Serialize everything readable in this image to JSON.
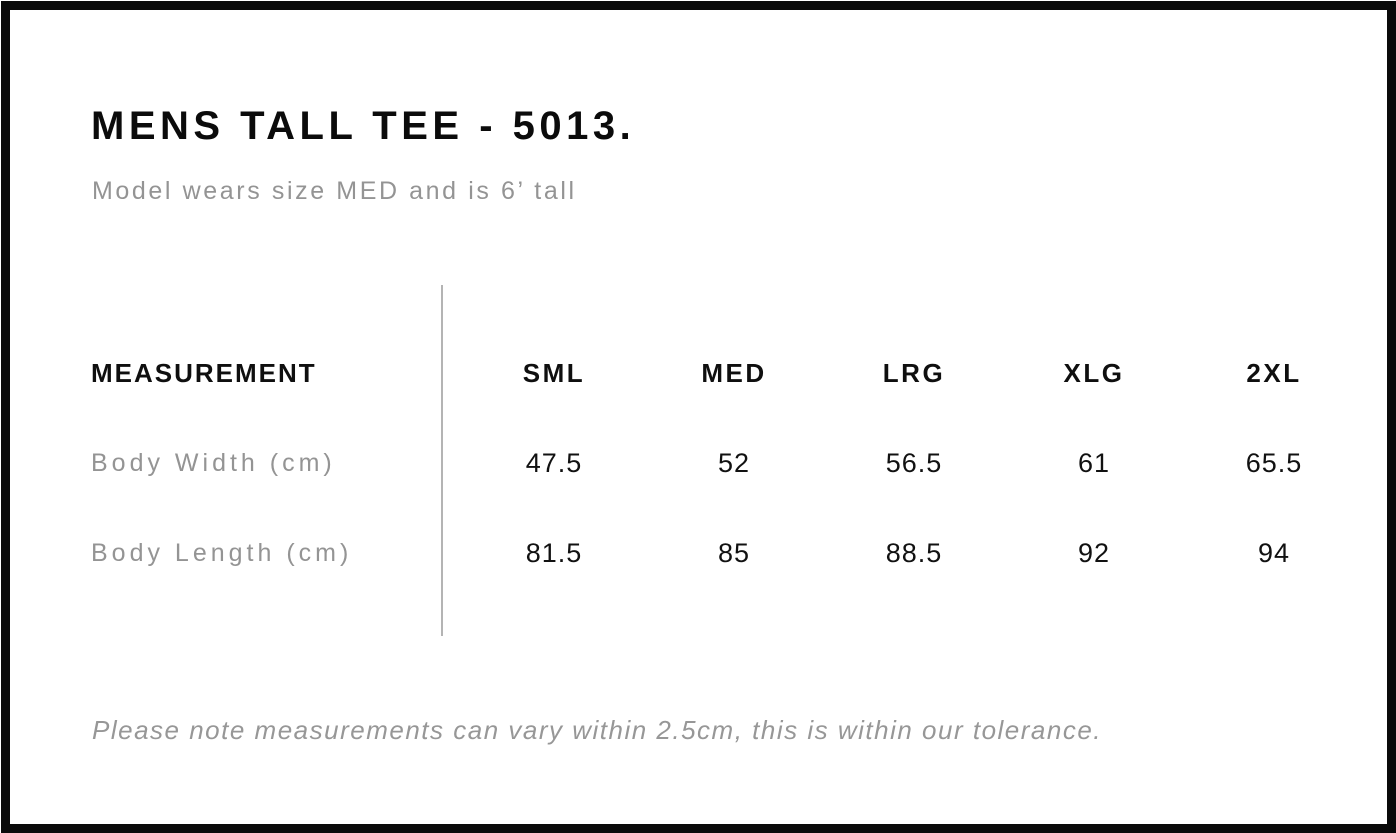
{
  "page": {
    "title": "MENS TALL TEE - 5013.",
    "subtitle": "Model wears size MED and is 6’ tall",
    "footnote": "Please note measurements can vary within 2.5cm, this is within our tolerance."
  },
  "size_chart": {
    "measurement_header": "MEASUREMENT",
    "size_headers": [
      "SML",
      "MED",
      "LRG",
      "XLG",
      "2XL"
    ],
    "rows": [
      {
        "label": "Body Width (cm)",
        "values": [
          "47.5",
          "52",
          "56.5",
          "61",
          "65.5"
        ]
      },
      {
        "label": "Body Length (cm)",
        "values": [
          "81.5",
          "85",
          "88.5",
          "92",
          "94"
        ]
      }
    ]
  },
  "colors": {
    "border": "#0a0a0a",
    "text_black": "#0f0f0f",
    "text_gray": "#949494",
    "divider_gray": "#b4b4b4"
  }
}
